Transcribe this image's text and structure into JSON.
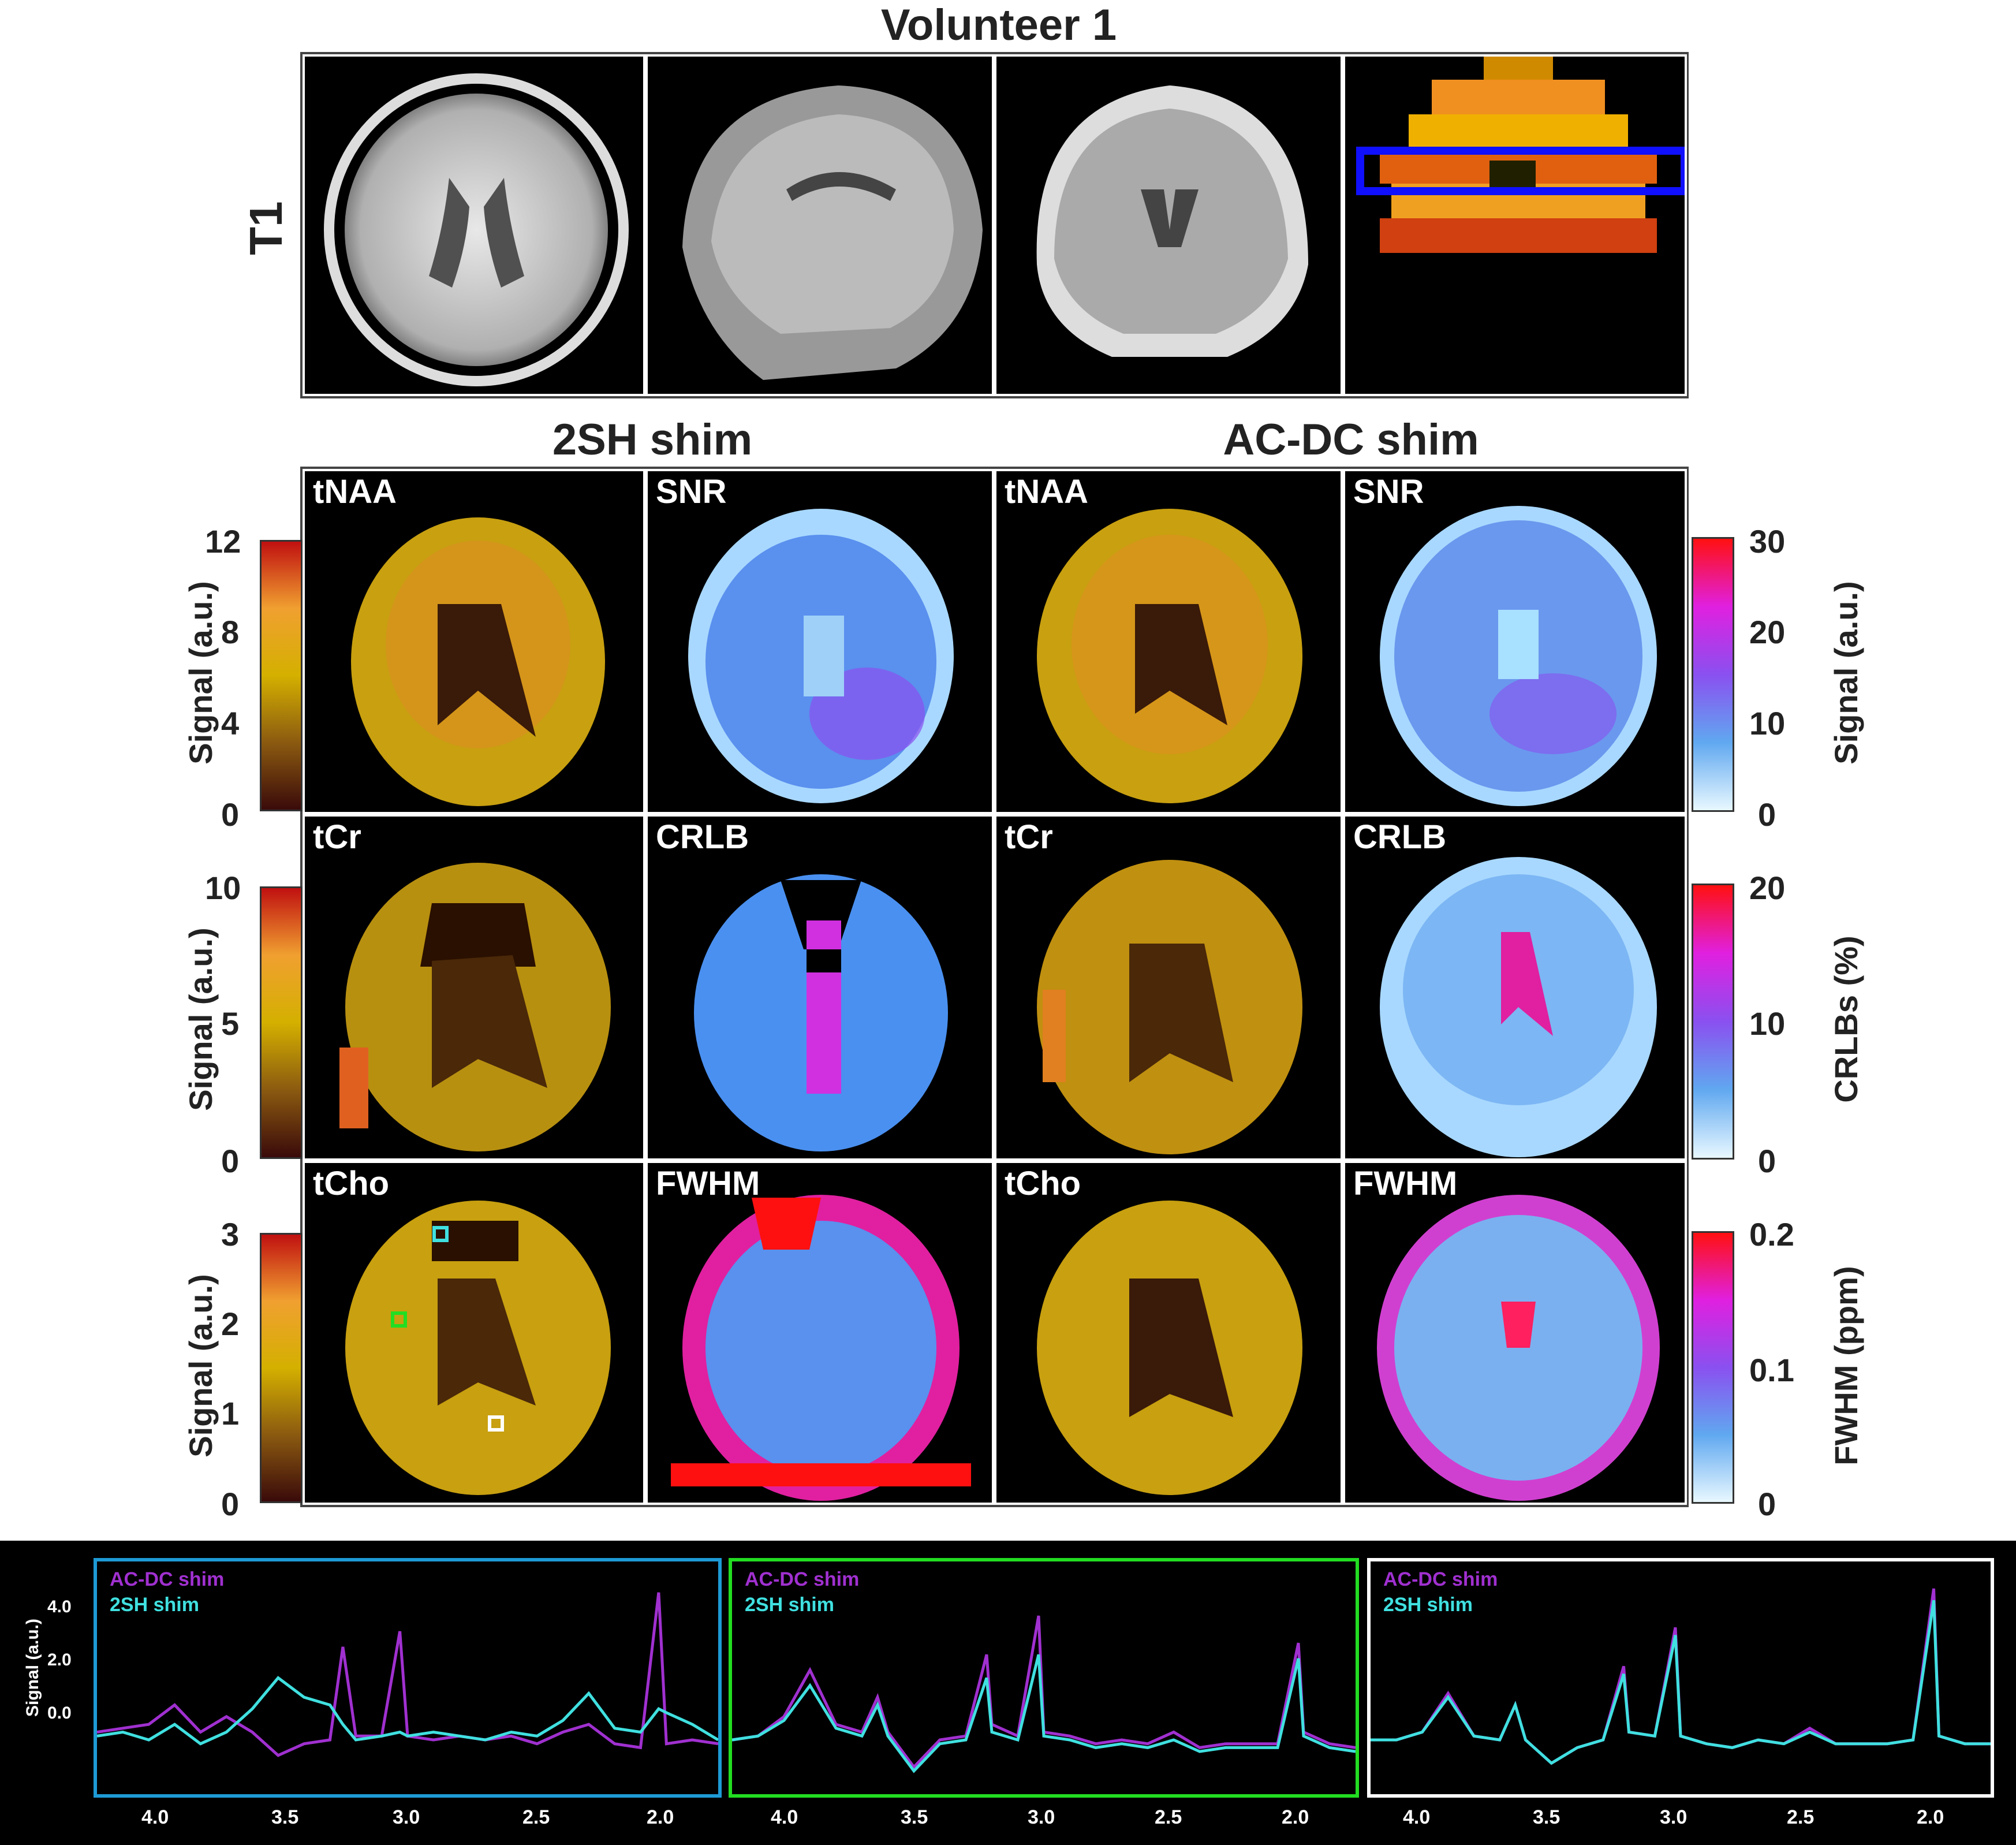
{
  "title": "Volunteer 1",
  "row_label": "T1",
  "col_headers": [
    "2SH shim",
    "AC-DC shim"
  ],
  "panels": {
    "row1": [
      "tNAA",
      "SNR",
      "tNAA",
      "SNR"
    ],
    "row2": [
      "tCr",
      "CRLB",
      "tCr",
      "CRLB"
    ],
    "row3": [
      "tCho",
      "FWHM",
      "tCho",
      "FWHM"
    ]
  },
  "left_colorbars": [
    {
      "label": "Signal (a.u.)",
      "ticks": [
        "12",
        "8",
        "4",
        "0"
      ]
    },
    {
      "label": "Signal (a.u.)",
      "ticks": [
        "10",
        "5",
        "0"
      ]
    },
    {
      "label": "Signal (a.u.)",
      "ticks": [
        "3",
        "2",
        "1",
        "0"
      ]
    }
  ],
  "right_colorbars": [
    {
      "label": "Signal (a.u.)",
      "ticks": [
        "30",
        "20",
        "10",
        "0"
      ]
    },
    {
      "label": "CRLBs (%)",
      "ticks": [
        "20",
        "10",
        "0"
      ]
    },
    {
      "label": "FWHM (ppm)",
      "ticks": [
        "0.2",
        "0.1",
        "0"
      ]
    }
  ],
  "colors": {
    "hot": [
      "#3a0a0a",
      "#8b4513",
      "#d4b000",
      "#f0a030",
      "#e02020"
    ],
    "cool": [
      "#d8f4ff",
      "#60a8f0",
      "#8a50f0",
      "#e020e0",
      "#ff1010"
    ],
    "cyan": "#40e0e0",
    "purple": "#a030d0",
    "box_blue": "#1e9ad6",
    "box_green": "#22dd22",
    "box_white": "#ffffff"
  },
  "chart_data": {
    "type": "line",
    "ylabel": "Signal (a.u.)",
    "yticks": [
      "4.0",
      "2.0",
      "0.0"
    ],
    "xticks": [
      "4.0",
      "3.5",
      "3.0",
      "2.5",
      "2.0"
    ],
    "xlim": [
      4.2,
      1.8
    ],
    "ylim": [
      -1.0,
      5.0
    ],
    "legend": [
      "AC-DC shim",
      "2SH shim"
    ],
    "series": [
      {
        "name": "AC-DC shim",
        "x": [
          4.2,
          4.1,
          4.0,
          3.9,
          3.8,
          3.7,
          3.6,
          3.5,
          3.4,
          3.3,
          3.25,
          3.2,
          3.1,
          3.03,
          3.0,
          2.9,
          2.8,
          2.7,
          2.6,
          2.5,
          2.4,
          2.3,
          2.2,
          2.1,
          2.03,
          2.0,
          1.9,
          1.8
        ],
        "values": [
          0.6,
          0.7,
          0.8,
          1.3,
          0.6,
          1.0,
          0.6,
          0.0,
          0.3,
          0.4,
          2.8,
          0.5,
          0.5,
          3.2,
          0.5,
          0.4,
          0.5,
          0.4,
          0.5,
          0.3,
          0.6,
          0.8,
          0.3,
          0.2,
          4.2,
          0.3,
          0.4,
          0.3
        ]
      },
      {
        "name": "2SH shim",
        "x": [
          4.2,
          4.1,
          4.0,
          3.9,
          3.8,
          3.7,
          3.6,
          3.5,
          3.4,
          3.3,
          3.25,
          3.2,
          3.1,
          3.03,
          3.0,
          2.9,
          2.8,
          2.7,
          2.6,
          2.5,
          2.4,
          2.3,
          2.2,
          2.1,
          2.03,
          2.0,
          1.9,
          1.8
        ],
        "values": [
          0.5,
          0.6,
          0.4,
          0.8,
          0.3,
          0.6,
          1.2,
          2.0,
          1.5,
          1.3,
          0.8,
          0.4,
          0.5,
          0.6,
          0.5,
          0.6,
          0.5,
          0.4,
          0.6,
          0.5,
          0.9,
          1.6,
          0.7,
          0.6,
          1.2,
          1.1,
          0.8,
          0.4
        ]
      }
    ]
  },
  "chart_data_green": {
    "type": "line",
    "xticks": [
      "4.0",
      "3.5",
      "3.0",
      "2.5",
      "2.0"
    ],
    "legend": [
      "AC-DC shim",
      "2SH shim"
    ],
    "series": [
      {
        "name": "AC-DC shim",
        "x": [
          4.2,
          4.1,
          4.0,
          3.9,
          3.8,
          3.7,
          3.64,
          3.6,
          3.5,
          3.4,
          3.3,
          3.22,
          3.2,
          3.1,
          3.02,
          3.0,
          2.9,
          2.8,
          2.7,
          2.6,
          2.5,
          2.4,
          2.3,
          2.2,
          2.1,
          2.02,
          2.0,
          1.9,
          1.8
        ],
        "values": [
          0.4,
          0.5,
          1.0,
          2.2,
          0.8,
          0.6,
          1.5,
          0.6,
          -0.3,
          0.4,
          0.5,
          2.6,
          0.8,
          0.5,
          3.6,
          0.6,
          0.5,
          0.3,
          0.4,
          0.3,
          0.6,
          0.2,
          0.3,
          0.3,
          0.3,
          2.9,
          0.6,
          0.3,
          0.2
        ]
      },
      {
        "name": "2SH shim",
        "x": [
          4.2,
          4.1,
          4.0,
          3.9,
          3.8,
          3.7,
          3.64,
          3.6,
          3.5,
          3.4,
          3.3,
          3.22,
          3.2,
          3.1,
          3.02,
          3.0,
          2.9,
          2.8,
          2.7,
          2.6,
          2.5,
          2.4,
          2.3,
          2.2,
          2.1,
          2.02,
          2.0,
          1.9,
          1.8
        ],
        "values": [
          0.4,
          0.5,
          0.9,
          1.8,
          0.7,
          0.5,
          1.3,
          0.5,
          -0.4,
          0.3,
          0.4,
          2.0,
          0.6,
          0.4,
          2.6,
          0.5,
          0.4,
          0.2,
          0.3,
          0.2,
          0.4,
          0.1,
          0.2,
          0.2,
          0.2,
          2.5,
          0.5,
          0.2,
          0.1
        ]
      }
    ]
  },
  "chart_data_white": {
    "type": "line",
    "xticks": [
      "4.0",
      "3.5",
      "3.0",
      "2.5",
      "2.0"
    ],
    "legend": [
      "AC-DC shim",
      "2SH shim"
    ],
    "series": [
      {
        "name": "AC-DC shim",
        "x": [
          4.2,
          4.1,
          4.0,
          3.9,
          3.8,
          3.7,
          3.64,
          3.6,
          3.5,
          3.4,
          3.3,
          3.22,
          3.2,
          3.1,
          3.02,
          3.0,
          2.9,
          2.8,
          2.7,
          2.6,
          2.5,
          2.4,
          2.3,
          2.2,
          2.1,
          2.02,
          2.0,
          1.9,
          1.8
        ],
        "values": [
          0.4,
          0.4,
          0.6,
          1.6,
          0.5,
          0.4,
          1.3,
          0.4,
          -0.2,
          0.2,
          0.4,
          2.3,
          0.6,
          0.5,
          3.3,
          0.5,
          0.3,
          0.2,
          0.4,
          0.3,
          0.7,
          0.3,
          0.3,
          0.3,
          0.4,
          4.3,
          0.5,
          0.3,
          0.3
        ]
      },
      {
        "name": "2SH shim",
        "x": [
          4.2,
          4.1,
          4.0,
          3.9,
          3.8,
          3.7,
          3.64,
          3.6,
          3.5,
          3.4,
          3.3,
          3.22,
          3.2,
          3.1,
          3.02,
          3.0,
          2.9,
          2.8,
          2.7,
          2.6,
          2.5,
          2.4,
          2.3,
          2.2,
          2.1,
          2.02,
          2.0,
          1.9,
          1.8
        ],
        "values": [
          0.4,
          0.4,
          0.6,
          1.5,
          0.5,
          0.4,
          1.3,
          0.4,
          -0.2,
          0.2,
          0.4,
          2.1,
          0.6,
          0.5,
          3.1,
          0.5,
          0.3,
          0.2,
          0.4,
          0.3,
          0.6,
          0.3,
          0.3,
          0.3,
          0.4,
          4.0,
          0.5,
          0.3,
          0.3
        ]
      }
    ]
  }
}
